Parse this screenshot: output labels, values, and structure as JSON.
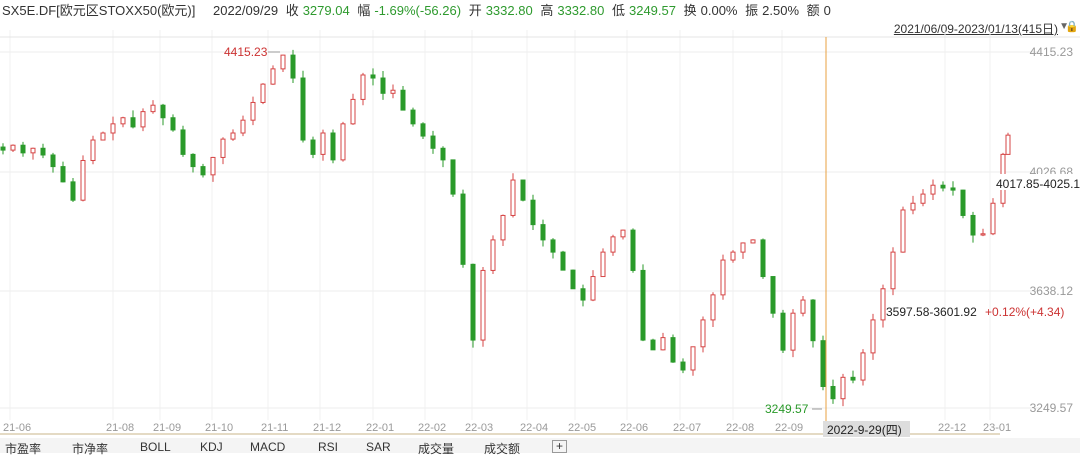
{
  "header": {
    "symbol": "SX5E.DF[欧元区STOXX50(欧元)]",
    "date": "2022/09/29",
    "close_label": "收",
    "close": "3279.04",
    "change_label": "幅",
    "change": "-1.69%(-56.26)",
    "open_label": "开",
    "open": "3332.80",
    "high_label": "高",
    "high": "3332.80",
    "low_label": "低",
    "low": "3249.57",
    "turnover_label": "换",
    "turnover": "0.00%",
    "amplitude_label": "振",
    "amplitude": "2.50%",
    "amount_label": "额",
    "amount": "0"
  },
  "range": {
    "label": "2021/06/09-2023/01/13(415日)"
  },
  "tabs": [
    "市盈率",
    "市净率",
    "BOLL",
    "KDJ",
    "MACD",
    "RSI",
    "SAR",
    "成交量",
    "成交额",
    "+"
  ],
  "chart_data": {
    "type": "candlestick",
    "ylim": [
      3249.57,
      4415.23
    ],
    "y_ticks": [
      "4415.23",
      "4026.68",
      "3638.12",
      "3249.57"
    ],
    "x_ticks": [
      "21-06",
      "21-08",
      "21-09",
      "21-10",
      "21-11",
      "21-12",
      "22-01",
      "22-02",
      "22-03",
      "22-04",
      "22-05",
      "22-06",
      "22-07",
      "22-08",
      "22-09",
      "22-12",
      "23-01"
    ],
    "crosshair_date": "2022-9-29(四)",
    "annotations": {
      "max": "4415.23",
      "min": "3249.57",
      "right_range": "4017.85-4025.1",
      "cursor_range": "3597.58-3601.92",
      "cursor_change": "+0.12%(+4.34)"
    },
    "up_color": "#d64545",
    "down_color": "#2a9a2a",
    "closes": [
      4094,
      4110,
      4085,
      4100,
      4078,
      4040,
      3990,
      3930,
      4060,
      4127,
      4150,
      4180,
      4200,
      4170,
      4220,
      4241,
      4200,
      4160,
      4080,
      4040,
      4013,
      4070,
      4130,
      4150,
      4192,
      4250,
      4310,
      4360,
      4405,
      4330,
      4127,
      4080,
      4150,
      4062,
      4180,
      4260,
      4340,
      4330,
      4280,
      4290,
      4225,
      4180,
      4140,
      4100,
      4062,
      3950,
      3720,
      3472,
      3700,
      3800,
      3880,
      3996,
      3930,
      3850,
      3800,
      3760,
      3701,
      3640,
      3603,
      3680,
      3760,
      3810,
      3832,
      3700,
      3472,
      3440,
      3480,
      3400,
      3374,
      3450,
      3538,
      3620,
      3734,
      3760,
      3790,
      3800,
      3680,
      3560,
      3439,
      3560,
      3603,
      3470,
      3320,
      3280,
      3350,
      3341,
      3430,
      3538,
      3640,
      3760,
      3898,
      3920,
      3950,
      3979,
      3970,
      3963,
      3880,
      3816,
      3820,
      3920,
      4080,
      4143
    ]
  }
}
